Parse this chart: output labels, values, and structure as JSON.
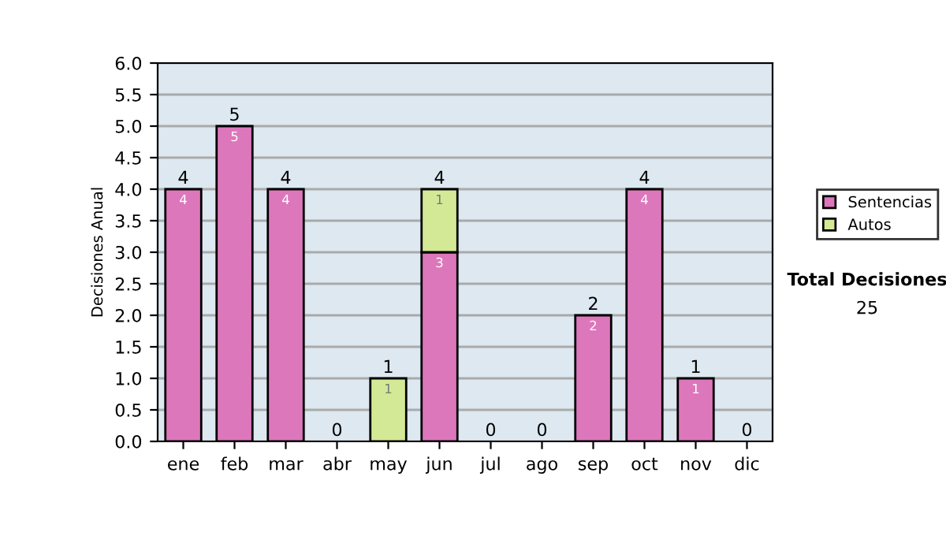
{
  "chart_data": {
    "type": "bar",
    "stacked": true,
    "ylabel": "Decisiones Anual",
    "categories": [
      "ene",
      "feb",
      "mar",
      "abr",
      "may",
      "jun",
      "jul",
      "ago",
      "sep",
      "oct",
      "nov",
      "dic"
    ],
    "series": [
      {
        "name": "Sentencias",
        "color": "#dd77bb",
        "values": [
          4,
          5,
          4,
          null,
          null,
          3,
          null,
          null,
          2,
          4,
          1,
          null
        ]
      },
      {
        "name": "Autos",
        "color": "#d4e996",
        "values": [
          null,
          null,
          null,
          null,
          1,
          1,
          null,
          null,
          null,
          null,
          null,
          null
        ]
      }
    ],
    "totals": [
      "4",
      "5",
      "4",
      "0",
      "1",
      "4",
      "0",
      "0",
      "2",
      "4",
      "1",
      "0"
    ],
    "data_labels": true,
    "ylim": [
      0,
      6
    ],
    "yticks": [
      "0.0",
      "0.5",
      "1.0",
      "1.5",
      "2.0",
      "2.5",
      "3.0",
      "3.5",
      "4.0",
      "4.5",
      "5.0",
      "5.5",
      "6.0"
    ],
    "grid": "y",
    "legend": "right",
    "annotations": [
      "Total Decisiones",
      "25"
    ]
  }
}
